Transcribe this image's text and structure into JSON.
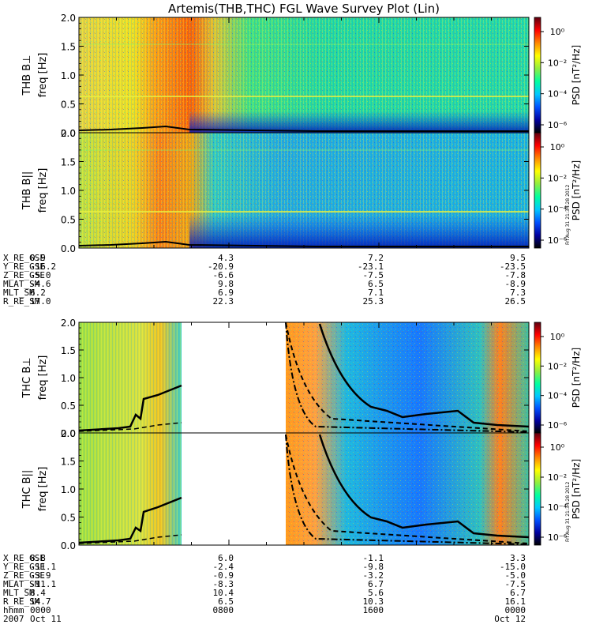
{
  "title": "Artemis(THB,THC) FGL Wave Survey Plot (Lin)",
  "colors": {
    "background": "#ffffff",
    "axis": "#000000",
    "gap": "#ffffff",
    "trace": "#000000"
  },
  "colorbar": {
    "label": "PSD [nT²/Hz]",
    "ticks": [
      "10⁰",
      "10⁻²",
      "10⁻⁴",
      "10⁻⁶"
    ],
    "stops": [
      "#5a0010",
      "#ff0000",
      "#ff8800",
      "#ffff00",
      "#90ee40",
      "#00ffa0",
      "#00c8ff",
      "#0050ff",
      "#0000a0",
      "#000000"
    ]
  },
  "stamp": "Fri Aug 31 21:34:28 2012",
  "chart_data": [
    {
      "type": "heatmap",
      "id": "thb-bperp",
      "ylabel_top": "THB B⊥",
      "ylabel": "freq [Hz]",
      "yticks": [
        "0.0",
        "0.5",
        "1.0",
        "1.5",
        "2.0"
      ],
      "ylim": [
        0,
        2.0
      ]
    },
    {
      "type": "heatmap",
      "id": "thb-bpar",
      "ylabel_top": "THB B||",
      "ylabel": "freq [Hz]",
      "yticks": [
        "0.0",
        "0.5",
        "1.0",
        "1.5",
        "2.0"
      ],
      "ylim": [
        0,
        2.0
      ]
    },
    {
      "type": "heatmap",
      "id": "thc-bperp",
      "ylabel_top": "THC B⊥",
      "ylabel": "freq [Hz]",
      "yticks": [
        "0.0",
        "0.5",
        "1.0",
        "1.5",
        "2.0"
      ],
      "ylim": [
        0,
        2.0
      ],
      "data_gap_hours": [
        5.0,
        11.0
      ]
    },
    {
      "type": "heatmap",
      "id": "thc-bpar",
      "ylabel_top": "THC B||",
      "ylabel": "freq [Hz]",
      "yticks": [
        "0.0",
        "0.5",
        "1.0",
        "1.5",
        "2.0"
      ],
      "ylim": [
        0,
        2.0
      ],
      "data_gap_hours": [
        5.0,
        11.0
      ]
    }
  ],
  "thb_ephemeris": {
    "labels": [
      "X_RE_GSE",
      "Y_RE_GSE",
      "Z_RE_GSE",
      "MLAT_SM",
      "MLT_SM",
      "R_RE_SM"
    ],
    "columns": [
      [
        "0.9",
        "-16.2",
        "-5.0",
        "-4.6",
        "6.2",
        "17.0"
      ],
      [
        "4.3",
        "-20.9",
        "-6.6",
        "9.8",
        "6.9",
        "22.3"
      ],
      [
        "7.2",
        "-23.1",
        "-7.5",
        "6.5",
        "7.1",
        "25.3"
      ],
      [
        "9.5",
        "-23.5",
        "-7.8",
        "-8.9",
        "7.3",
        "26.5"
      ]
    ]
  },
  "thc_ephemeris": {
    "labels": [
      "X_RE_GSE",
      "Y_RE_GSE",
      "Z_RE_GSE",
      "MLAT_SM",
      "MLT_SM",
      "R_RE_SM",
      "hhmm",
      "2007"
    ],
    "columns": [
      [
        "8.8",
        "-11.1",
        "-3.9",
        "-11.1",
        "8.4",
        "14.7",
        "0000",
        "Oct 11"
      ],
      [
        "6.0",
        "-2.4",
        "-0.9",
        "-8.3",
        "10.4",
        "6.5",
        "0800",
        ""
      ],
      [
        "-1.1",
        "-9.8",
        "-3.2",
        "6.7",
        "5.6",
        "10.3",
        "1600",
        ""
      ],
      [
        "3.3",
        "-15.0",
        "-5.0",
        "-7.5",
        "6.7",
        "16.1",
        "0000",
        "Oct 12"
      ]
    ]
  }
}
